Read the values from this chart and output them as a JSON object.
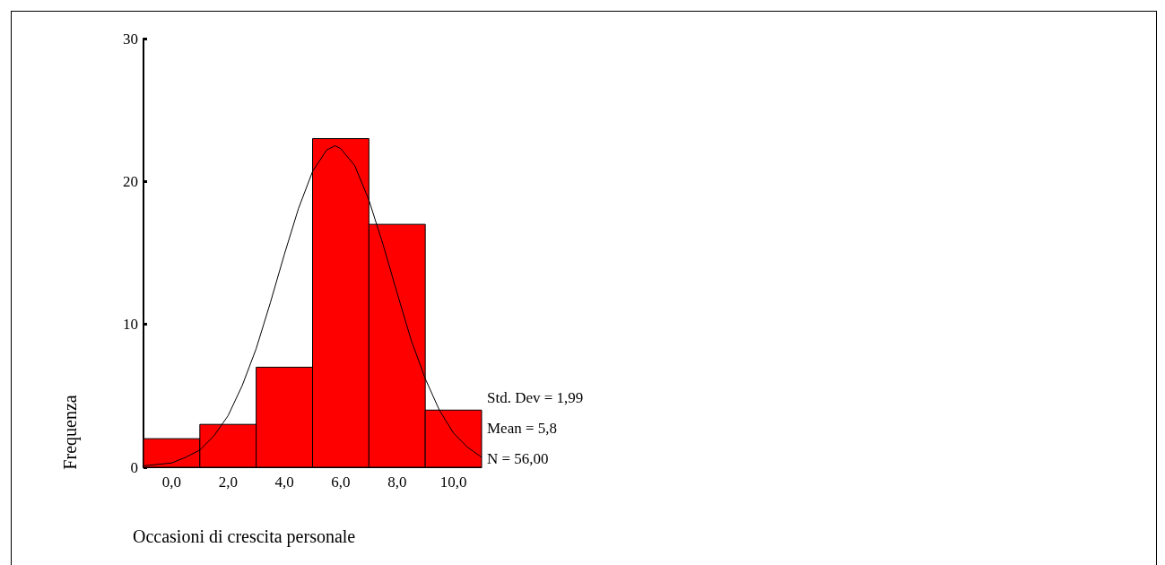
{
  "chart_data": {
    "type": "histogram",
    "xlabel": "Occasioni di crescita personale",
    "ylabel": "Frequenza",
    "bins": [
      -1,
      1,
      3,
      5,
      7,
      9,
      11
    ],
    "values": [
      2,
      3,
      7,
      23,
      17,
      4
    ],
    "color": "#ff0000",
    "series": [
      {
        "type": "line",
        "color": "#000000",
        "x": [
          -1,
          -0.5,
          0,
          0.5,
          1,
          1.5,
          2,
          2.5,
          3,
          3.5,
          4,
          4.5,
          5,
          5.5,
          5.8,
          6,
          6.5,
          7,
          7.5,
          8,
          8.5,
          9,
          9.5,
          10,
          10.5,
          11
        ],
        "values": [
          0.1,
          0.2,
          0.3,
          0.7,
          1.2,
          2.2,
          3.6,
          5.7,
          8.3,
          11.5,
          14.9,
          18.1,
          20.7,
          22.2,
          22.5,
          22.3,
          21.1,
          18.7,
          15.6,
          12.2,
          8.9,
          6.2,
          4.0,
          2.4,
          1.4,
          0.7
        ]
      }
    ],
    "xlim": [
      -1,
      11
    ],
    "xticks": [
      {
        "value": 0,
        "label": "0,0"
      },
      {
        "value": 2,
        "label": "2,0"
      },
      {
        "value": 4,
        "label": "4,0"
      },
      {
        "value": 6,
        "label": "6,0"
      },
      {
        "value": 8,
        "label": "8,0"
      },
      {
        "value": 10,
        "label": "10,0"
      }
    ],
    "ylim": [
      0,
      30
    ],
    "yticks": [
      0,
      10,
      20,
      30
    ],
    "annotations": [
      "Std. Dev = 1,99",
      "Mean = 5,8",
      "N = 56,00"
    ],
    "grid": false,
    "legend": false,
    "marker": "none",
    "line_style": "solid"
  }
}
